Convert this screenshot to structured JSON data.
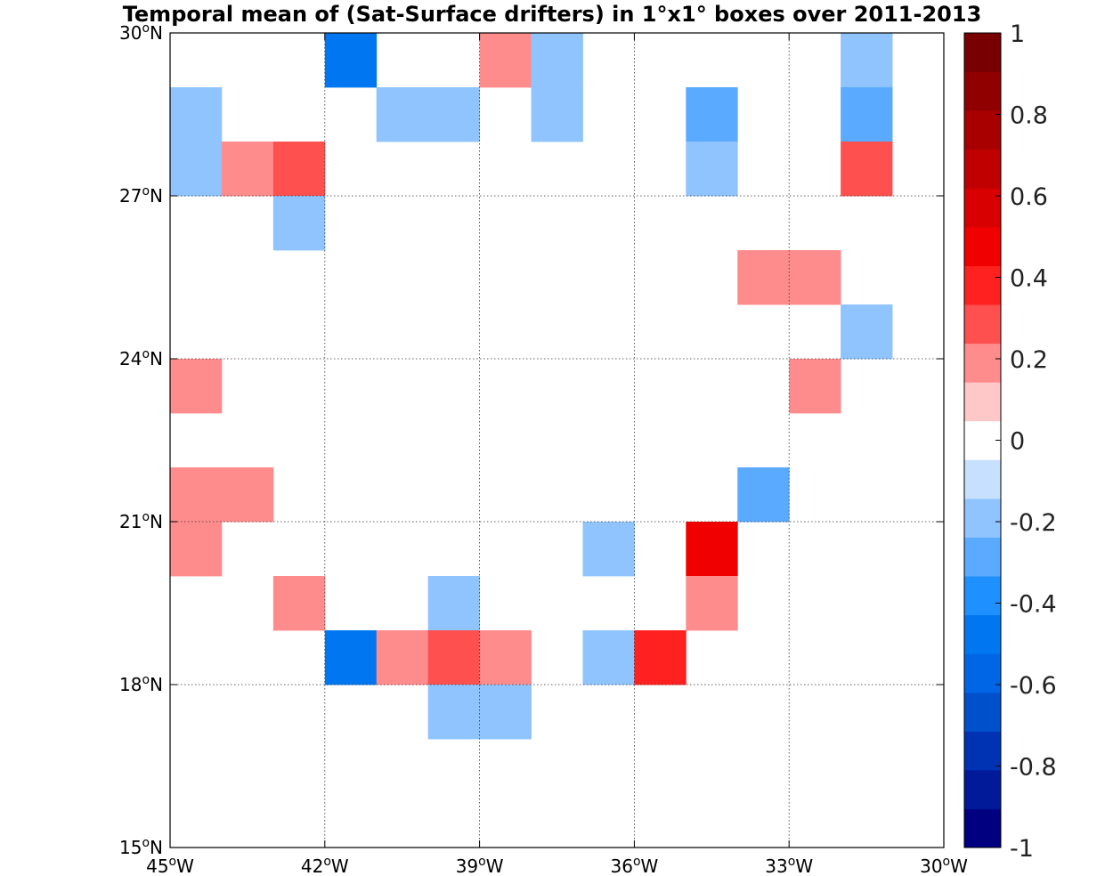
{
  "chart_data": {
    "type": "heatmap",
    "title": "Temporal mean of (Sat-Surface drifters) in 1°x1° boxes over 2011-2013",
    "x_range": [
      -45,
      -30
    ],
    "y_range": [
      15,
      30
    ],
    "x_ticks": [
      {
        "value": -45,
        "deg": "45",
        "sup": "o",
        "hem": "W"
      },
      {
        "value": -42,
        "deg": "42",
        "sup": "o",
        "hem": "W"
      },
      {
        "value": -39,
        "deg": "39",
        "sup": "o",
        "hem": "W"
      },
      {
        "value": -36,
        "deg": "36",
        "sup": "o",
        "hem": "W"
      },
      {
        "value": -33,
        "deg": "33",
        "sup": "o",
        "hem": "W"
      },
      {
        "value": -30,
        "deg": "30",
        "sup": "o",
        "hem": "W"
      }
    ],
    "y_ticks": [
      {
        "value": 15,
        "deg": "15",
        "sup": "o",
        "hem": "N"
      },
      {
        "value": 18,
        "deg": "18",
        "sup": "o",
        "hem": "N"
      },
      {
        "value": 21,
        "deg": "21",
        "sup": "o",
        "hem": "N"
      },
      {
        "value": 24,
        "deg": "24",
        "sup": "o",
        "hem": "N"
      },
      {
        "value": 27,
        "deg": "27",
        "sup": "o",
        "hem": "N"
      },
      {
        "value": 30,
        "deg": "30",
        "sup": "o",
        "hem": "N"
      }
    ],
    "grid": true,
    "cells": [
      {
        "lon": -42,
        "lat": 29,
        "value": -0.45
      },
      {
        "lon": -39,
        "lat": 29,
        "value": 0.15
      },
      {
        "lon": -38,
        "lat": 29,
        "value": -0.15
      },
      {
        "lon": -32,
        "lat": 29,
        "value": -0.15
      },
      {
        "lon": -45,
        "lat": 28,
        "value": -0.15
      },
      {
        "lon": -41,
        "lat": 28,
        "value": -0.15
      },
      {
        "lon": -40,
        "lat": 28,
        "value": -0.15
      },
      {
        "lon": -38,
        "lat": 28,
        "value": -0.15
      },
      {
        "lon": -35,
        "lat": 28,
        "value": -0.25
      },
      {
        "lon": -32,
        "lat": 28,
        "value": -0.25
      },
      {
        "lon": -45,
        "lat": 27,
        "value": -0.15
      },
      {
        "lon": -44,
        "lat": 27,
        "value": 0.15
      },
      {
        "lon": -43,
        "lat": 27,
        "value": 0.25
      },
      {
        "lon": -35,
        "lat": 27,
        "value": -0.15
      },
      {
        "lon": -32,
        "lat": 27,
        "value": 0.25
      },
      {
        "lon": -43,
        "lat": 26,
        "value": -0.15
      },
      {
        "lon": -34,
        "lat": 25,
        "value": 0.15
      },
      {
        "lon": -33,
        "lat": 25,
        "value": 0.15
      },
      {
        "lon": -32,
        "lat": 24,
        "value": -0.15
      },
      {
        "lon": -45,
        "lat": 23,
        "value": 0.15
      },
      {
        "lon": -33,
        "lat": 23,
        "value": 0.15
      },
      {
        "lon": -45,
        "lat": 21,
        "value": 0.15
      },
      {
        "lon": -44,
        "lat": 21,
        "value": 0.15
      },
      {
        "lon": -34,
        "lat": 21,
        "value": -0.25
      },
      {
        "lon": -45,
        "lat": 20,
        "value": 0.15
      },
      {
        "lon": -37,
        "lat": 20,
        "value": -0.15
      },
      {
        "lon": -35,
        "lat": 20,
        "value": 0.45
      },
      {
        "lon": -43,
        "lat": 19,
        "value": 0.15
      },
      {
        "lon": -40,
        "lat": 19,
        "value": -0.15
      },
      {
        "lon": -35,
        "lat": 19,
        "value": 0.15
      },
      {
        "lon": -42,
        "lat": 18,
        "value": -0.45
      },
      {
        "lon": -41,
        "lat": 18,
        "value": 0.15
      },
      {
        "lon": -40,
        "lat": 18,
        "value": 0.25
      },
      {
        "lon": -39,
        "lat": 18,
        "value": 0.15
      },
      {
        "lon": -37,
        "lat": 18,
        "value": -0.15
      },
      {
        "lon": -36,
        "lat": 18,
        "value": 0.35
      },
      {
        "lon": -40,
        "lat": 17,
        "value": -0.15
      },
      {
        "lon": -39,
        "lat": 17,
        "value": -0.15
      }
    ],
    "colorbar": {
      "range": [
        -1,
        1
      ],
      "tick_labels": [
        {
          "value": 1,
          "label": "1"
        },
        {
          "value": 0.8,
          "label": "0.8"
        },
        {
          "value": 0.6,
          "label": "0.6"
        },
        {
          "value": 0.4,
          "label": "0.4"
        },
        {
          "value": 0.2,
          "label": "0.2"
        },
        {
          "value": 0,
          "label": "0"
        },
        {
          "value": -0.2,
          "label": "-0.2"
        },
        {
          "value": -0.4,
          "label": "-0.4"
        },
        {
          "value": -0.6,
          "label": "-0.6"
        },
        {
          "value": -0.8,
          "label": "-0.8"
        },
        {
          "value": -1,
          "label": "-1"
        }
      ],
      "colors": [
        "#000080",
        "#001a99",
        "#0033b3",
        "#0050cc",
        "#0066e6",
        "#0077f0",
        "#1e90ff",
        "#5aaaff",
        "#8fc4ff",
        "#c8e0ff",
        "#ffffff",
        "#ffc8c8",
        "#ff8c8c",
        "#ff5050",
        "#ff2020",
        "#f00000",
        "#d80000",
        "#c00000",
        "#a80000",
        "#900000",
        "#780000"
      ]
    }
  }
}
